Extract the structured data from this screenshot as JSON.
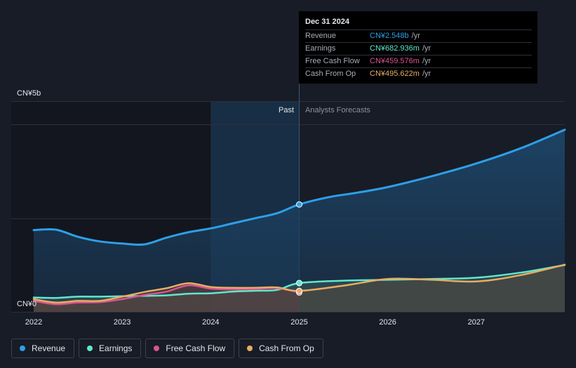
{
  "tooltip": {
    "date": "Dec 31 2024",
    "rows": [
      {
        "name": "Revenue",
        "value": "CN¥2.548b",
        "unit": "/yr",
        "color": "#2e9fe8"
      },
      {
        "name": "Earnings",
        "value": "CN¥682.936m",
        "unit": "/yr",
        "color": "#5ee8cc"
      },
      {
        "name": "Free Cash Flow",
        "value": "CN¥459.576m",
        "unit": "/yr",
        "color": "#d9558f"
      },
      {
        "name": "Cash From Op",
        "value": "CN¥495.622m",
        "unit": "/yr",
        "color": "#e9ac62"
      }
    ]
  },
  "labels": {
    "past": "Past",
    "forecast": "Analysts Forecasts",
    "y_top": "CN¥5b",
    "y_bottom": "CN¥0"
  },
  "legend": [
    {
      "name": "Revenue",
      "color": "#2e9fe8"
    },
    {
      "name": "Earnings",
      "color": "#5ee8cc"
    },
    {
      "name": "Free Cash Flow",
      "color": "#d9558f"
    },
    {
      "name": "Cash From Op",
      "color": "#e9ac62"
    }
  ],
  "chart_data": {
    "type": "line",
    "unit": "CN¥ billions (annual)",
    "x_ticks": [
      "2022",
      "2023",
      "2024",
      "2025",
      "2026",
      "2027"
    ],
    "ylim": [
      0,
      5
    ],
    "past_end": 2025.0,
    "series": [
      {
        "name": "Revenue",
        "color": "#2e9fe8",
        "points": [
          [
            2022.0,
            1.94
          ],
          [
            2022.25,
            1.95
          ],
          [
            2022.5,
            1.78
          ],
          [
            2022.75,
            1.67
          ],
          [
            2023.0,
            1.62
          ],
          [
            2023.25,
            1.6
          ],
          [
            2023.5,
            1.76
          ],
          [
            2023.75,
            1.89
          ],
          [
            2024.0,
            1.98
          ],
          [
            2024.25,
            2.1
          ],
          [
            2024.5,
            2.22
          ],
          [
            2024.75,
            2.34
          ],
          [
            2025.0,
            2.548
          ],
          [
            2025.33,
            2.72
          ],
          [
            2025.66,
            2.83
          ],
          [
            2026.0,
            2.96
          ],
          [
            2026.5,
            3.22
          ],
          [
            2027.0,
            3.52
          ],
          [
            2027.5,
            3.88
          ],
          [
            2028.0,
            4.32
          ]
        ]
      },
      {
        "name": "Earnings",
        "color": "#5ee8cc",
        "points": [
          [
            2022.0,
            0.34
          ],
          [
            2022.25,
            0.33
          ],
          [
            2022.5,
            0.36
          ],
          [
            2022.75,
            0.36
          ],
          [
            2023.0,
            0.37
          ],
          [
            2023.25,
            0.38
          ],
          [
            2023.5,
            0.39
          ],
          [
            2023.75,
            0.43
          ],
          [
            2024.0,
            0.44
          ],
          [
            2024.25,
            0.48
          ],
          [
            2024.5,
            0.5
          ],
          [
            2024.75,
            0.52
          ],
          [
            2025.0,
            0.683
          ],
          [
            2025.5,
            0.74
          ],
          [
            2026.0,
            0.76
          ],
          [
            2026.5,
            0.78
          ],
          [
            2027.0,
            0.81
          ],
          [
            2027.5,
            0.93
          ],
          [
            2028.0,
            1.11
          ]
        ]
      },
      {
        "name": "Free Cash Flow",
        "color": "#d9558f",
        "points": [
          [
            2022.0,
            0.26
          ],
          [
            2022.25,
            0.18
          ],
          [
            2022.5,
            0.22
          ],
          [
            2022.75,
            0.23
          ],
          [
            2023.0,
            0.3
          ],
          [
            2023.25,
            0.4
          ],
          [
            2023.5,
            0.48
          ],
          [
            2023.75,
            0.63
          ],
          [
            2024.0,
            0.55
          ],
          [
            2024.25,
            0.53
          ],
          [
            2024.5,
            0.54
          ],
          [
            2024.75,
            0.56
          ],
          [
            2025.0,
            0.46
          ]
        ]
      },
      {
        "name": "Cash From Op",
        "color": "#e9ac62",
        "points": [
          [
            2022.0,
            0.3
          ],
          [
            2022.25,
            0.22
          ],
          [
            2022.5,
            0.26
          ],
          [
            2022.75,
            0.26
          ],
          [
            2023.0,
            0.36
          ],
          [
            2023.25,
            0.47
          ],
          [
            2023.5,
            0.56
          ],
          [
            2023.75,
            0.68
          ],
          [
            2024.0,
            0.59
          ],
          [
            2024.25,
            0.57
          ],
          [
            2024.5,
            0.57
          ],
          [
            2024.75,
            0.58
          ],
          [
            2025.0,
            0.496
          ],
          [
            2025.5,
            0.62
          ],
          [
            2026.0,
            0.78
          ],
          [
            2026.5,
            0.76
          ],
          [
            2027.0,
            0.72
          ],
          [
            2027.5,
            0.87
          ],
          [
            2028.0,
            1.12
          ]
        ]
      }
    ]
  }
}
